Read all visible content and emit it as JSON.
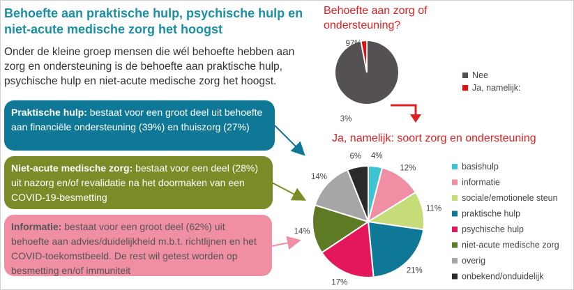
{
  "title": "Behoefte aan praktische hulp, psychische hulp en niet-acute medische zorg het hoogst",
  "intro": "Onder de kleine groep mensen die wél behoefte hebben aan zorg en ondersteuning is de behoefte aan praktische hulp, psychische hulp en niet-acute medische zorg het hoogst.",
  "boxes": [
    {
      "head": "Praktische hulp:",
      "body": " bestaat voor een groot deel uit behoefte aan financiële ondersteuning (39%) en thuiszorg (27%)",
      "color": "#0f7896"
    },
    {
      "head": "Niet-acute medische zorg:",
      "body": " bestaat voor een deel (28%) uit nazorg en/of revalidatie na het doormaken van een COVID-19-besmetting",
      "color": "#7a8c27"
    },
    {
      "head": "Informatie:",
      "body": " bestaat voor een groot deel (62%) uit behoefte aan advies/duidelijkheid m.b.t. richtlijnen en het COVID-toekomstbeeld. De rest wil getest worden op besmetting en/of immuniteit",
      "color": "#f08fa3"
    }
  ],
  "chart_data": [
    {
      "type": "pie",
      "title": "Behoefte aan zorg of ondersteuning?",
      "categories": [
        "Nee",
        "Ja, namelijk:"
      ],
      "values": [
        97,
        3
      ],
      "labels": [
        "97%",
        "3%"
      ],
      "colors": [
        "#555054",
        "#e01010"
      ],
      "legend": "right"
    },
    {
      "type": "pie",
      "title": "Ja, namelijk:  soort zorg en ondersteuning",
      "categories": [
        "basishulp",
        "informatie",
        "sociale/emotionele steun",
        "praktische hulp",
        "psychische hulp",
        "niet-acute medische zorg",
        "overig",
        "onbekend/onduidelijk"
      ],
      "values": [
        4,
        12,
        11,
        21,
        17,
        14,
        14,
        6
      ],
      "labels": [
        "4%",
        "12%",
        "11%",
        "21%",
        "17%",
        "14%",
        "14%",
        "6%"
      ],
      "colors": [
        "#3ec3d2",
        "#f08fa3",
        "#c5dc78",
        "#0f7896",
        "#e5175c",
        "#5f7a25",
        "#a6a6a6",
        "#2a2a2a"
      ],
      "legend": "right"
    }
  ]
}
